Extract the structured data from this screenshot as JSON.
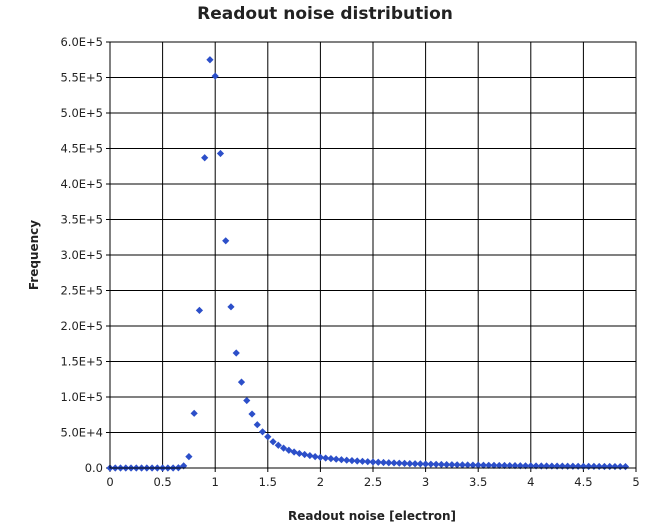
{
  "chart_data": {
    "type": "scatter",
    "title": "Readout noise distribution",
    "xlabel": "Readout noise [electron]",
    "ylabel": "Frequency",
    "xlim": [
      0,
      5
    ],
    "ylim": [
      0,
      600000
    ],
    "x_ticks": [
      0,
      0.5,
      1,
      1.5,
      2,
      2.5,
      3,
      3.5,
      4,
      4.5,
      5
    ],
    "x_tick_labels": [
      "0",
      "0.5",
      "1",
      "1.5",
      "2",
      "2.5",
      "3",
      "3.5",
      "4",
      "4.5",
      "5"
    ],
    "y_ticks": [
      0,
      50000,
      100000,
      150000,
      200000,
      250000,
      300000,
      350000,
      400000,
      450000,
      500000,
      550000,
      600000
    ],
    "y_tick_labels": [
      "0.0",
      "5.0E+4",
      "1.0E+5",
      "1.5E+5",
      "2.0E+5",
      "2.5E+5",
      "3.0E+5",
      "3.5E+5",
      "4.0E+5",
      "4.5E+5",
      "5.0E+5",
      "5.5E+5",
      "6.0E+5"
    ],
    "grid": true,
    "marker_color": "#2c4fc9",
    "series": [
      {
        "points": [
          [
            0.0,
            0
          ],
          [
            0.05,
            0
          ],
          [
            0.1,
            0
          ],
          [
            0.15,
            0
          ],
          [
            0.2,
            0
          ],
          [
            0.25,
            0
          ],
          [
            0.3,
            0
          ],
          [
            0.35,
            0
          ],
          [
            0.4,
            0
          ],
          [
            0.45,
            0
          ],
          [
            0.5,
            0
          ],
          [
            0.55,
            0
          ],
          [
            0.6,
            0
          ],
          [
            0.65,
            300
          ],
          [
            0.7,
            3000
          ],
          [
            0.75,
            16000
          ],
          [
            0.8,
            77000
          ],
          [
            0.85,
            222000
          ],
          [
            0.9,
            437000
          ],
          [
            0.95,
            575000
          ],
          [
            1.0,
            552000
          ],
          [
            1.05,
            443000
          ],
          [
            1.1,
            320000
          ],
          [
            1.15,
            227000
          ],
          [
            1.2,
            162000
          ],
          [
            1.25,
            121000
          ],
          [
            1.3,
            95000
          ],
          [
            1.35,
            76000
          ],
          [
            1.4,
            61000
          ],
          [
            1.45,
            51000
          ],
          [
            1.5,
            44000
          ],
          [
            1.55,
            37000
          ],
          [
            1.6,
            32000
          ],
          [
            1.65,
            28000
          ],
          [
            1.7,
            25000
          ],
          [
            1.75,
            22500
          ],
          [
            1.8,
            20500
          ],
          [
            1.85,
            19000
          ],
          [
            1.9,
            17500
          ],
          [
            1.95,
            16000
          ],
          [
            2.0,
            15000
          ],
          [
            2.05,
            14000
          ],
          [
            2.1,
            13200
          ],
          [
            2.15,
            12400
          ],
          [
            2.2,
            11700
          ],
          [
            2.25,
            11000
          ],
          [
            2.3,
            10400
          ],
          [
            2.35,
            9900
          ],
          [
            2.4,
            9400
          ],
          [
            2.45,
            8900
          ],
          [
            2.5,
            8500
          ],
          [
            2.55,
            8100
          ],
          [
            2.6,
            7700
          ],
          [
            2.65,
            7400
          ],
          [
            2.7,
            7100
          ],
          [
            2.75,
            6800
          ],
          [
            2.8,
            6500
          ],
          [
            2.85,
            6200
          ],
          [
            2.9,
            6000
          ],
          [
            2.95,
            5800
          ],
          [
            3.0,
            5600
          ],
          [
            3.05,
            5400
          ],
          [
            3.1,
            5200
          ],
          [
            3.15,
            5000
          ],
          [
            3.2,
            4800
          ],
          [
            3.25,
            4700
          ],
          [
            3.3,
            4500
          ],
          [
            3.35,
            4400
          ],
          [
            3.4,
            4300
          ],
          [
            3.45,
            4100
          ],
          [
            3.5,
            4000
          ],
          [
            3.55,
            3900
          ],
          [
            3.6,
            3800
          ],
          [
            3.65,
            3700
          ],
          [
            3.7,
            3600
          ],
          [
            3.75,
            3500
          ],
          [
            3.8,
            3400
          ],
          [
            3.85,
            3300
          ],
          [
            3.9,
            3200
          ],
          [
            3.95,
            3100
          ],
          [
            4.0,
            3000
          ],
          [
            4.05,
            2900
          ],
          [
            4.1,
            2850
          ],
          [
            4.15,
            2800
          ],
          [
            4.2,
            2700
          ],
          [
            4.25,
            2650
          ],
          [
            4.3,
            2600
          ],
          [
            4.35,
            2500
          ],
          [
            4.4,
            2450
          ],
          [
            4.45,
            2400
          ],
          [
            4.5,
            2350
          ],
          [
            4.55,
            2300
          ],
          [
            4.6,
            2250
          ],
          [
            4.65,
            2200
          ],
          [
            4.7,
            2150
          ],
          [
            4.75,
            2100
          ],
          [
            4.8,
            2050
          ],
          [
            4.85,
            2000
          ],
          [
            4.9,
            1950
          ]
        ]
      }
    ]
  }
}
